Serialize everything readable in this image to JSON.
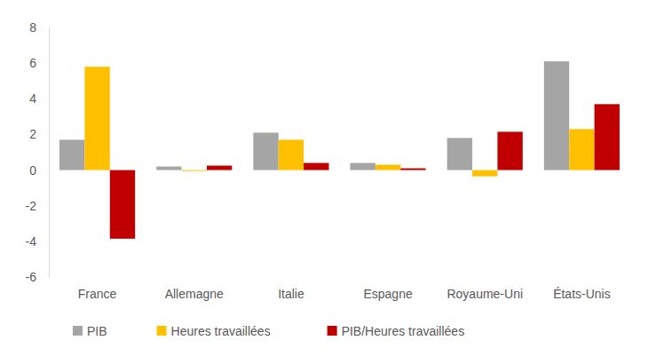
{
  "chart_data": {
    "type": "bar",
    "categories": [
      "France",
      "Allemagne",
      "Italie",
      "Espagne",
      "Royaume-Uni",
      "États-Unis"
    ],
    "series": [
      {
        "name": "PIB",
        "color": "#a5a5a5",
        "values": [
          1.7,
          0.2,
          2.1,
          0.4,
          1.8,
          6.1
        ]
      },
      {
        "name": "Heures travaillées",
        "color": "#ffc000",
        "values": [
          5.8,
          -0.05,
          1.7,
          0.3,
          -0.35,
          2.3
        ]
      },
      {
        "name": "PIB/Heures travaillées",
        "color": "#c00000",
        "values": [
          -3.85,
          0.25,
          0.4,
          0.1,
          2.15,
          3.7
        ]
      }
    ],
    "ylim": [
      -6,
      8
    ],
    "yticks": [
      -6,
      -4,
      -2,
      0,
      2,
      4,
      6,
      8
    ],
    "grid": false,
    "legend": "bottom"
  }
}
